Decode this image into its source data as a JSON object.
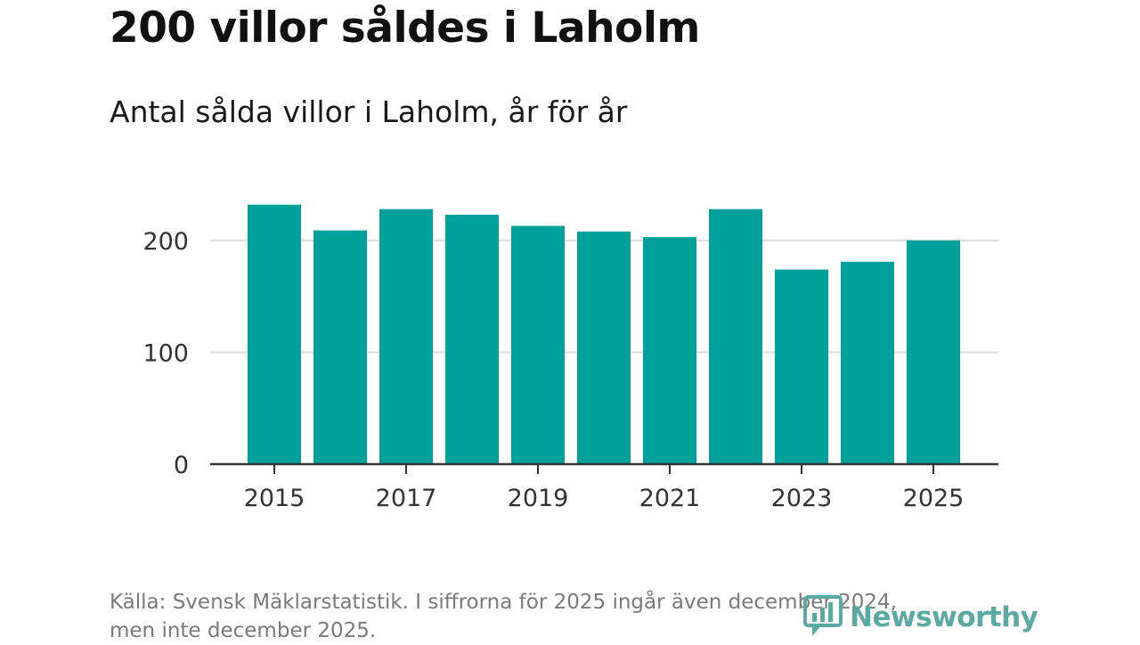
{
  "header": {
    "title": "200 villor såldes i Laholm",
    "subtitle": "Antal sålda villor i Laholm, år för år"
  },
  "footer": {
    "source_line1": "Källa: Svensk Mäklarstatistik. I siffrorna för 2025 ingår även december 2024,",
    "source_line2": "men inte december 2025."
  },
  "brand": {
    "name": "Newsworthy",
    "icon": "newsworthy-logo-icon",
    "color": "#5aa9a3"
  },
  "chart_data": {
    "type": "bar",
    "title": "200 villor såldes i Laholm",
    "subtitle": "Antal sålda villor i Laholm, år för år",
    "xlabel": "",
    "ylabel": "",
    "categories": [
      "2015",
      "2016",
      "2017",
      "2018",
      "2019",
      "2020",
      "2021",
      "2022",
      "2023",
      "2024",
      "2025"
    ],
    "values": [
      232,
      209,
      228,
      223,
      213,
      208,
      203,
      228,
      174,
      181,
      200
    ],
    "x_tick_labels": [
      "2015",
      "2017",
      "2019",
      "2021",
      "2023",
      "2025"
    ],
    "y_ticks": [
      0,
      100,
      200
    ],
    "y_tick_labels": [
      "0",
      "100",
      "200"
    ],
    "ylim": [
      0,
      240
    ],
    "grid": true,
    "bar_color": "#00a19a",
    "grid_color": "#dddddd",
    "axis_color": "#333333"
  }
}
